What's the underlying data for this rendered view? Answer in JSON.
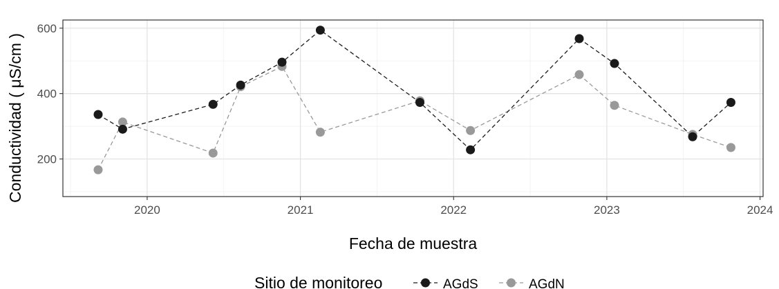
{
  "chart_data": {
    "type": "line",
    "xlabel": "Fecha de muestra",
    "ylabel": "Conductividad  ( μS/cm )",
    "xlim": [
      2019.45,
      2024.02
    ],
    "ylim": [
      85,
      625
    ],
    "x_ticks": [
      2020,
      2021,
      2022,
      2023,
      2024
    ],
    "x_tick_labels": [
      "2020",
      "2021",
      "2022",
      "2023",
      "2024"
    ],
    "y_ticks": [
      200,
      400,
      600
    ],
    "y_tick_labels": [
      "200",
      "400",
      "600"
    ],
    "grid": true,
    "legend": {
      "title": "Sitio de monitoreo",
      "position": "bottom"
    },
    "series": [
      {
        "name": "AGdS",
        "color": "#1a1a1a",
        "line_style": "dashed",
        "x": [
          2019.68,
          2019.84,
          2020.43,
          2020.61,
          2020.88,
          2021.13,
          2021.78,
          2022.11,
          2022.82,
          2023.05,
          2023.56,
          2023.81
        ],
        "y": [
          336,
          291,
          367,
          426,
          496,
          594,
          373,
          228,
          568,
          492,
          268,
          373
        ]
      },
      {
        "name": "AGdN",
        "color": "#999999",
        "line_style": "dashed",
        "x": [
          2019.68,
          2019.84,
          2020.43,
          2020.61,
          2020.88,
          2021.13,
          2021.78,
          2022.11,
          2022.82,
          2023.05,
          2023.56,
          2023.81
        ],
        "y": [
          167,
          313,
          218,
          421,
          483,
          282,
          378,
          287,
          458,
          364,
          275,
          235
        ]
      }
    ]
  }
}
